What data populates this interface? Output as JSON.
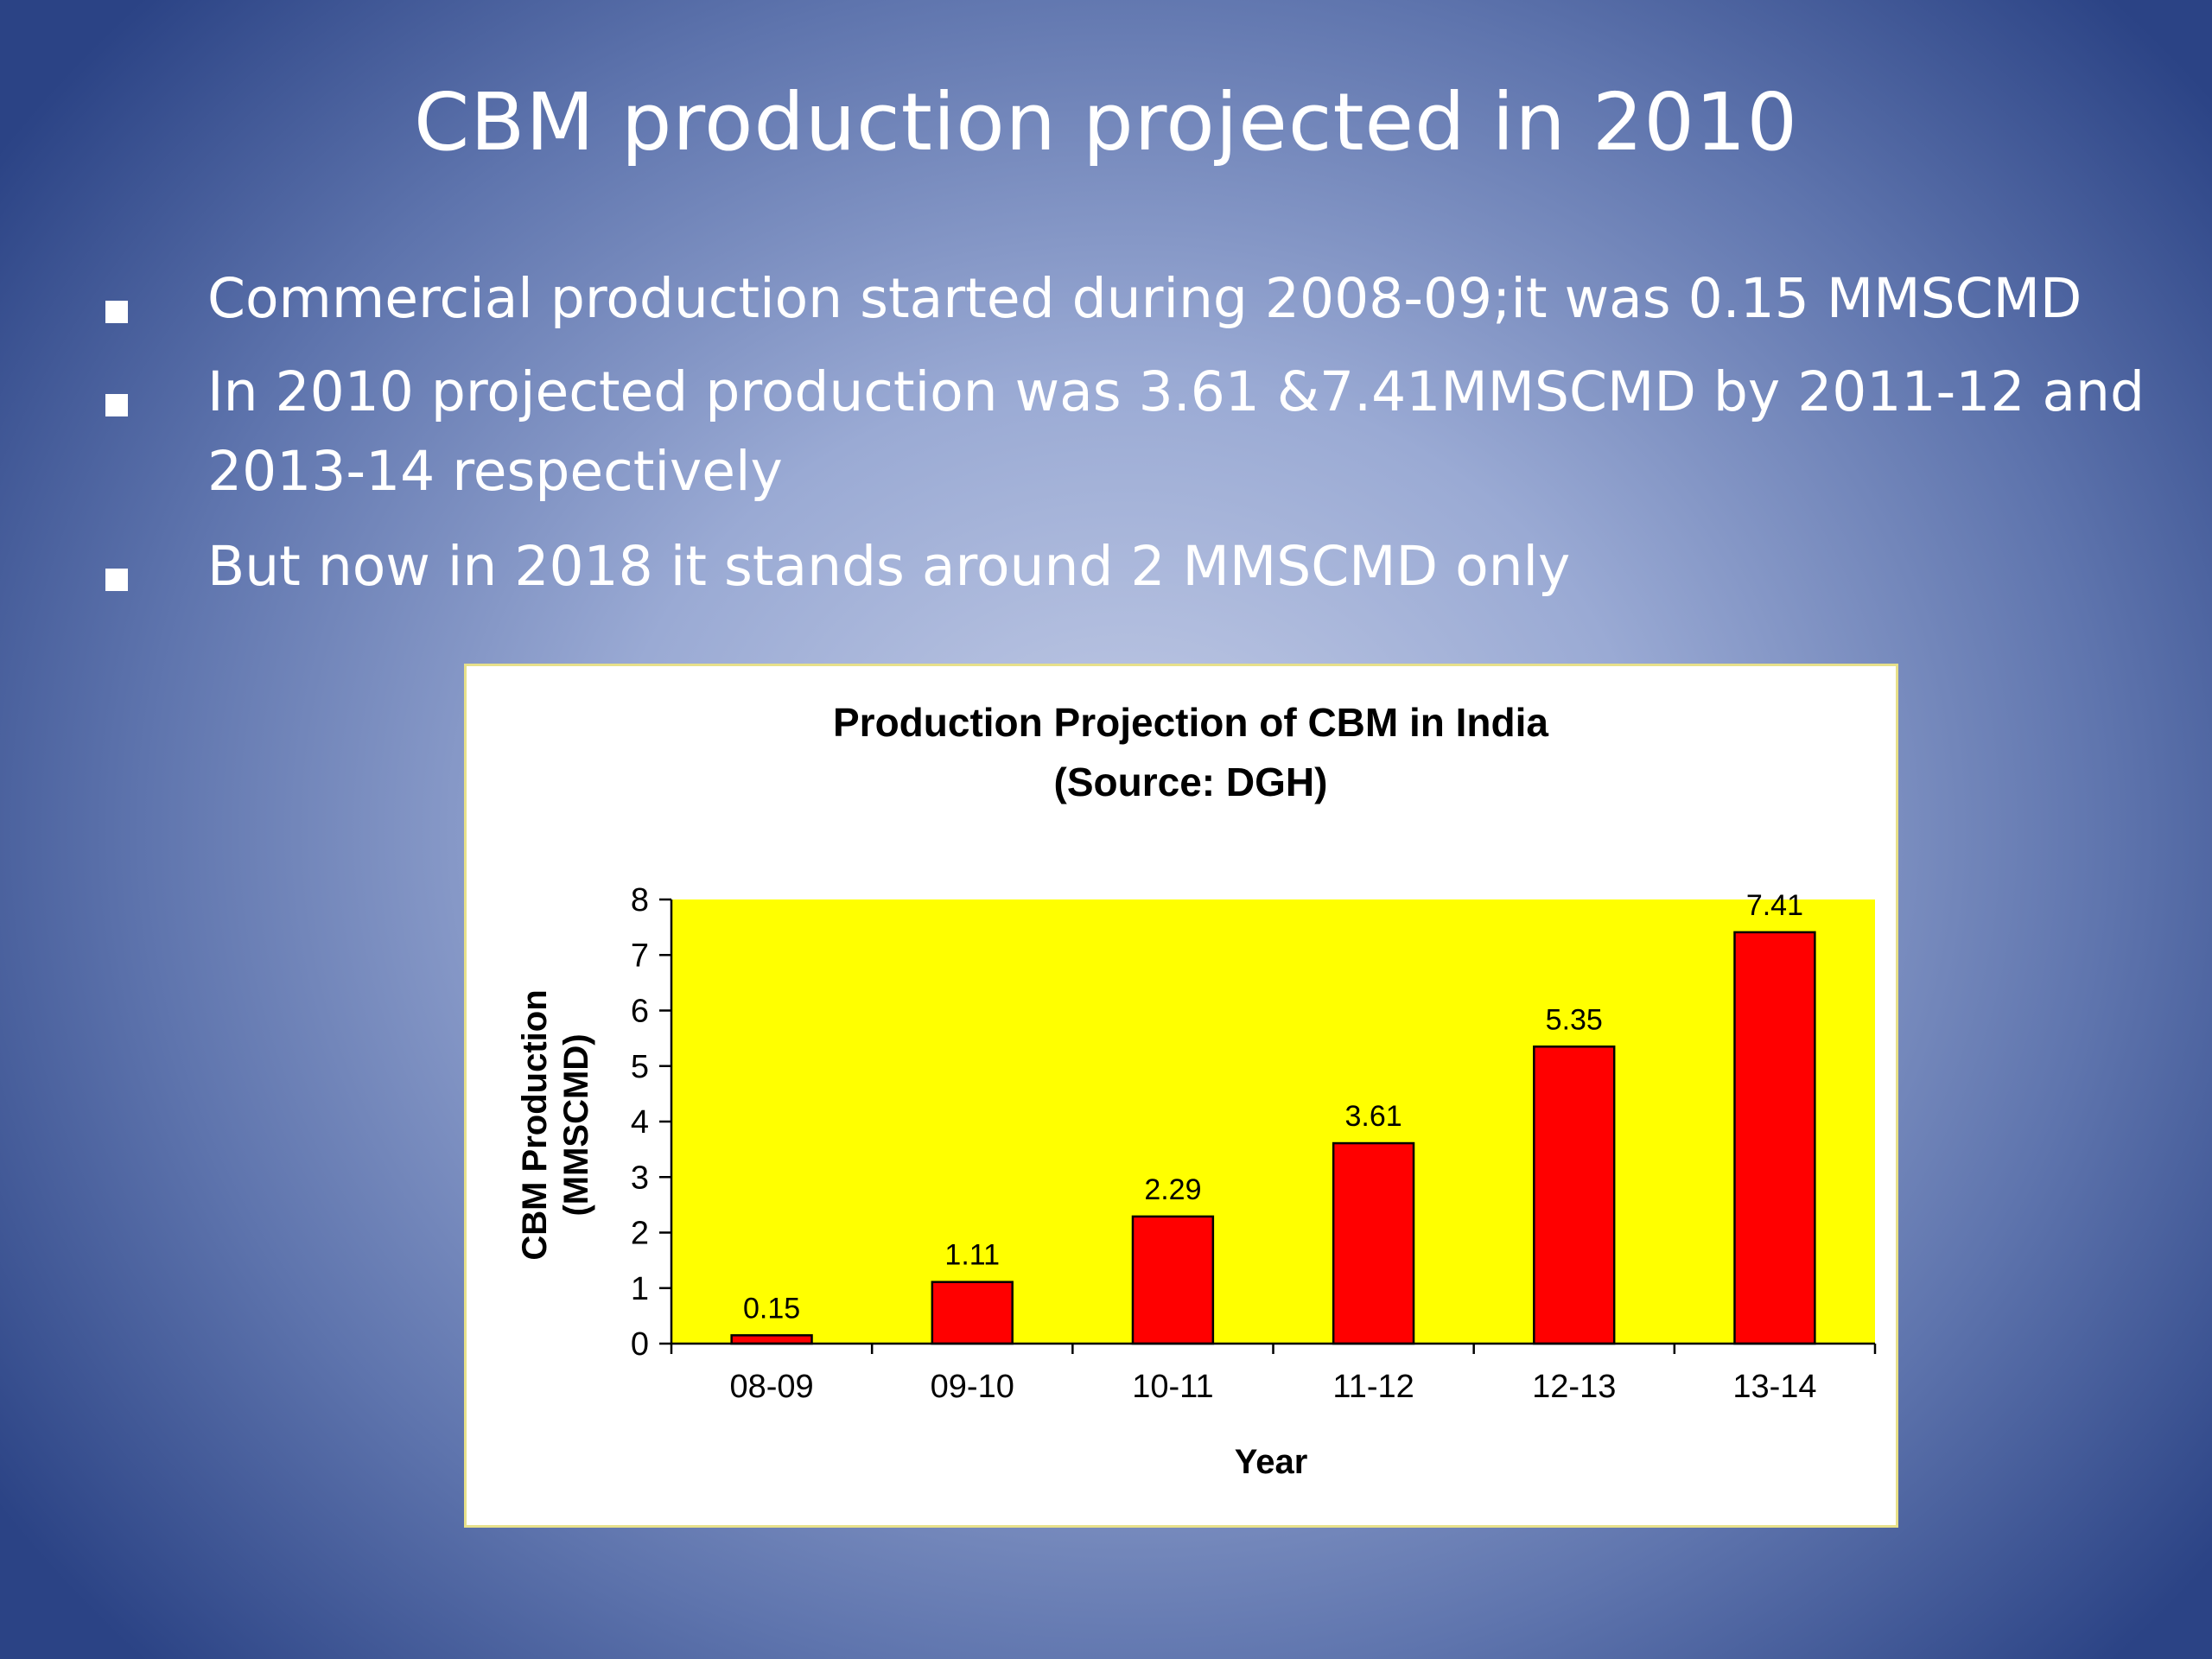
{
  "slide": {
    "title": "CBM production projected in 2010",
    "bullets": [
      "Commercial production started during 2008-09;it was 0.15 MMSCMD",
      "In 2010 projected production was 3.61 &7.41MMSCMD by 2011-12 and 2013-14 respectively",
      "But now in 2018 it stands around 2 MMSCMD only"
    ],
    "colors": {
      "background_center": "#c3cce6",
      "background_edge": "#2b4385",
      "text": "#ffffff"
    }
  },
  "chart_data": {
    "type": "bar",
    "title_lines": [
      "Production Projection of CBM in India",
      "(Source: DGH)"
    ],
    "categories": [
      "08-09",
      "09-10",
      "10-11",
      "11-12",
      "12-13",
      "13-14"
    ],
    "values": [
      0.15,
      1.11,
      2.29,
      3.61,
      5.35,
      7.41
    ],
    "data_labels": [
      "0.15",
      "1.11",
      "2.29",
      "3.61",
      "5.35",
      "7.41"
    ],
    "xlabel": "Year",
    "ylabel_lines": [
      "CBM Production",
      "(MMSCMD)"
    ],
    "ylim": [
      0,
      8
    ],
    "yticks": [
      "0",
      "1",
      "2",
      "3",
      "4",
      "5",
      "6",
      "7",
      "8"
    ],
    "grid": false,
    "legend": "none",
    "colors": {
      "bar": "#ff0000",
      "plot_background": "#ffff00",
      "panel_background": "#ffffff"
    }
  }
}
